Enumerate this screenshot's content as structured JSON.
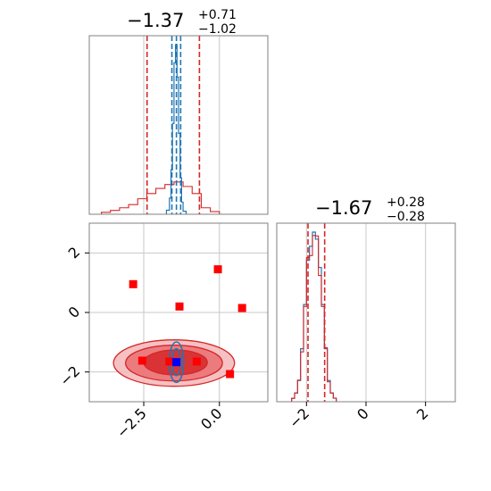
{
  "chart_data": {
    "type": "corner",
    "colors": {
      "red": "#d62728",
      "red_fill_light": "#f4b6b8",
      "red_fill_mid": "#ea6e72",
      "red_fill_dark": "#d62728",
      "blue": "#1f77b4",
      "marker_red": "#ff0000",
      "marker_blue": "#0000ff",
      "grid": "#c8c8c8",
      "frame": "#808080"
    },
    "param1": {
      "title_median": "−1.37",
      "title_plus": "+0.71",
      "title_minus": "−1.02",
      "range": [
        -4.3,
        1.6
      ],
      "ticks": [
        -2.5,
        0.0
      ],
      "tick_labels": [
        "−2.5",
        "0.0"
      ],
      "red_quantiles": [
        -2.39,
        -1.37,
        -0.66
      ],
      "blue_quantiles": [
        -1.57,
        -1.42,
        -1.28
      ],
      "red_hist": {
        "edges": [
          -3.9,
          -3.6,
          -3.3,
          -3.0,
          -2.7,
          -2.4,
          -2.1,
          -1.8,
          -1.5,
          -1.2,
          -0.9,
          -0.6,
          -0.3,
          0.0
        ],
        "counts": [
          0.6,
          1.2,
          2.0,
          3.0,
          4.8,
          6.4,
          8.0,
          9.2,
          10.0,
          8.6,
          6.4,
          2.0,
          0.8
        ]
      },
      "blue_hist": {
        "edges": [
          -1.75,
          -1.65,
          -1.6,
          -1.55,
          -1.5,
          -1.45,
          -1.4,
          -1.35,
          -1.3,
          -1.25,
          -1.2,
          -1.1
        ],
        "counts": [
          2.0,
          8.0,
          22.0,
          45.0,
          75.0,
          84.0,
          68.0,
          40.0,
          18.0,
          6.0,
          1.5
        ]
      }
    },
    "param2": {
      "title_median": "−1.67",
      "title_plus": "+0.28",
      "title_minus": "−0.28",
      "range": [
        -3.0,
        3.0
      ],
      "y_ticks": [
        -2,
        0,
        2
      ],
      "y_tick_labels": [
        "−2",
        "0",
        "2"
      ],
      "x_ticks": [
        -2,
        0,
        2
      ],
      "x_tick_labels": [
        "−2",
        "0",
        "2"
      ],
      "quantiles": [
        -1.95,
        -1.67,
        -1.39
      ],
      "hist": {
        "edges": [
          -2.5,
          -2.4,
          -2.3,
          -2.2,
          -2.1,
          -2.0,
          -1.9,
          -1.8,
          -1.7,
          -1.6,
          -1.5,
          -1.4,
          -1.3,
          -1.2,
          -1.1,
          -1.0
        ],
        "counts": [
          2,
          5,
          12,
          30,
          55,
          80,
          88,
          96,
          92,
          76,
          55,
          30,
          12,
          5,
          2
        ]
      }
    },
    "joint": {
      "contours_red": [
        {
          "center": [
            -1.5,
            -1.7
          ],
          "rx": 2.0,
          "ry": 0.78
        },
        {
          "center": [
            -1.5,
            -1.7
          ],
          "rx": 1.6,
          "ry": 0.6
        },
        {
          "center": [
            -1.45,
            -1.68
          ],
          "rx": 1.05,
          "ry": 0.42
        }
      ],
      "contours_blue": [
        {
          "center": [
            -1.42,
            -1.67
          ],
          "rx": 0.24,
          "ry": 0.68
        },
        {
          "center": [
            -1.42,
            -1.67
          ],
          "rx": 0.14,
          "ry": 0.45
        }
      ],
      "scatter_red": [
        [
          -2.85,
          0.95
        ],
        [
          -1.32,
          0.2
        ],
        [
          -0.05,
          1.45
        ],
        [
          0.75,
          0.15
        ],
        [
          -2.55,
          -1.62
        ],
        [
          -1.65,
          -1.65
        ],
        [
          -0.75,
          -1.65
        ],
        [
          0.35,
          -2.07
        ]
      ],
      "scatter_blue": [
        [
          -1.42,
          -1.67
        ]
      ]
    }
  }
}
